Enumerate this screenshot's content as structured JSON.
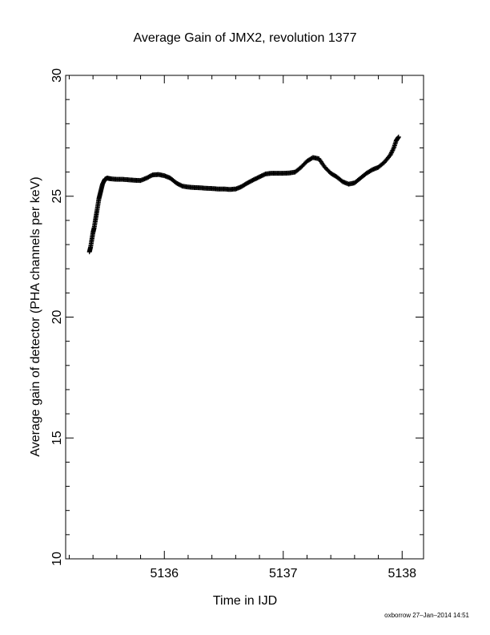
{
  "chart_data": {
    "type": "scatter",
    "title": "Average Gain of JMX2, revolution 1377",
    "xlabel": "Time in IJD",
    "ylabel": "Average gain of detector (PHA channels per keV)",
    "xlim": [
      5135.17,
      5138.18
    ],
    "ylim": [
      10,
      30
    ],
    "xticks": [
      5136,
      5137,
      5138
    ],
    "yticks": [
      10,
      15,
      20,
      25,
      30
    ],
    "marker": "plus",
    "color": "#000000",
    "grid": false,
    "legend": "none",
    "series": [
      {
        "x": [
          5135.37,
          5135.38,
          5135.39,
          5135.4,
          5135.41,
          5135.42,
          5135.43,
          5135.44,
          5135.45,
          5135.46,
          5135.47,
          5135.48,
          5135.5,
          5135.52,
          5135.55,
          5135.6,
          5135.65,
          5135.7,
          5135.75,
          5135.8,
          5135.85,
          5135.9,
          5135.95,
          5136.0,
          5136.05,
          5136.1,
          5136.15,
          5136.2,
          5136.25,
          5136.3,
          5136.35,
          5136.4,
          5136.45,
          5136.5,
          5136.55,
          5136.6,
          5136.65,
          5136.7,
          5136.75,
          5136.8,
          5136.85,
          5136.9,
          5136.95,
          5137.0,
          5137.05,
          5137.1,
          5137.15,
          5137.2,
          5137.25,
          5137.3,
          5137.35,
          5137.4,
          5137.45,
          5137.5,
          5137.55,
          5137.6,
          5137.65,
          5137.7,
          5137.75,
          5137.8,
          5137.85,
          5137.9,
          5137.93,
          5137.95,
          5137.97
        ],
        "y": [
          22.7,
          22.9,
          23.2,
          23.5,
          23.7,
          24.0,
          24.3,
          24.6,
          24.9,
          25.1,
          25.3,
          25.5,
          25.7,
          25.75,
          25.72,
          25.7,
          25.7,
          25.68,
          25.66,
          25.65,
          25.75,
          25.88,
          25.9,
          25.85,
          25.75,
          25.55,
          25.42,
          25.38,
          25.36,
          25.35,
          25.33,
          25.32,
          25.3,
          25.3,
          25.28,
          25.3,
          25.4,
          25.55,
          25.68,
          25.8,
          25.92,
          25.95,
          25.95,
          25.95,
          25.96,
          26.0,
          26.2,
          26.45,
          26.6,
          26.55,
          26.2,
          25.95,
          25.8,
          25.6,
          25.5,
          25.55,
          25.75,
          25.95,
          26.1,
          26.2,
          26.4,
          26.7,
          27.0,
          27.3,
          27.45
        ]
      }
    ]
  },
  "footnote": "oxborrow 27–Jan–2014 14:51"
}
